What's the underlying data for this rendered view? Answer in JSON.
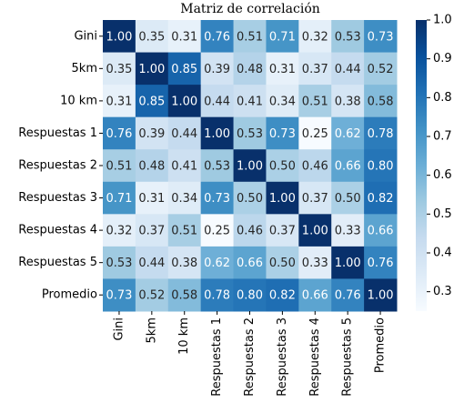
{
  "chart_data": {
    "type": "heatmap",
    "title": "Matriz de correlación",
    "categories": [
      "Gini",
      "5km",
      "10 km",
      "Respuestas 1",
      "Respuestas 2",
      "Respuestas 3",
      "Respuestas 4",
      "Respuestas 5",
      "Promedio"
    ],
    "values": [
      [
        1.0,
        0.35,
        0.31,
        0.76,
        0.51,
        0.71,
        0.32,
        0.53,
        0.73
      ],
      [
        0.35,
        1.0,
        0.85,
        0.39,
        0.48,
        0.31,
        0.37,
        0.44,
        0.52
      ],
      [
        0.31,
        0.85,
        1.0,
        0.44,
        0.41,
        0.34,
        0.51,
        0.38,
        0.58
      ],
      [
        0.76,
        0.39,
        0.44,
        1.0,
        0.53,
        0.73,
        0.25,
        0.62,
        0.78
      ],
      [
        0.51,
        0.48,
        0.41,
        0.53,
        1.0,
        0.5,
        0.46,
        0.66,
        0.8
      ],
      [
        0.71,
        0.31,
        0.34,
        0.73,
        0.5,
        1.0,
        0.37,
        0.5,
        0.82
      ],
      [
        0.32,
        0.37,
        0.51,
        0.25,
        0.46,
        0.37,
        1.0,
        0.33,
        0.66
      ],
      [
        0.53,
        0.44,
        0.38,
        0.62,
        0.66,
        0.5,
        0.33,
        1.0,
        0.76
      ],
      [
        0.73,
        0.52,
        0.58,
        0.78,
        0.8,
        0.82,
        0.66,
        0.76,
        1.0
      ]
    ],
    "value_labels": [
      [
        "1.00",
        "0.35",
        "0.31",
        "0.76",
        "0.51",
        "0.71",
        "0.32",
        "0.53",
        "0.73"
      ],
      [
        "0.35",
        "1.00",
        "0.85",
        "0.39",
        "0.48",
        "0.31",
        "0.37",
        "0.44",
        "0.52"
      ],
      [
        "0.31",
        "0.85",
        "1.00",
        "0.44",
        "0.41",
        "0.34",
        "0.51",
        "0.38",
        "0.58"
      ],
      [
        "0.76",
        "0.39",
        "0.44",
        "1.00",
        "0.53",
        "0.73",
        "0.25",
        "0.62",
        "0.78"
      ],
      [
        "0.51",
        "0.48",
        "0.41",
        "0.53",
        "1.00",
        "0.50",
        "0.46",
        "0.66",
        "0.80"
      ],
      [
        "0.71",
        "0.31",
        "0.34",
        "0.73",
        "0.50",
        "1.00",
        "0.37",
        "0.50",
        "0.82"
      ],
      [
        "0.32",
        "0.37",
        "0.51",
        "0.25",
        "0.46",
        "0.37",
        "1.00",
        "0.33",
        "0.66"
      ],
      [
        "0.53",
        "0.44",
        "0.38",
        "0.62",
        "0.66",
        "0.50",
        "0.33",
        "1.00",
        "0.76"
      ],
      [
        "0.73",
        "0.52",
        "0.58",
        "0.78",
        "0.80",
        "0.82",
        "0.66",
        "0.76",
        "1.00"
      ]
    ],
    "colormap": [
      "#f7fbff",
      "#deebf7",
      "#c6dbef",
      "#9ecae1",
      "#6baed6",
      "#4292c6",
      "#2171b5",
      "#08519c",
      "#08306b"
    ],
    "clim": [
      0.25,
      1.0
    ],
    "cticks": [
      0.3,
      0.4,
      0.5,
      0.6,
      0.7,
      0.8,
      0.9,
      {
        "value": 1.0,
        "label": "1.0"
      }
    ]
  }
}
